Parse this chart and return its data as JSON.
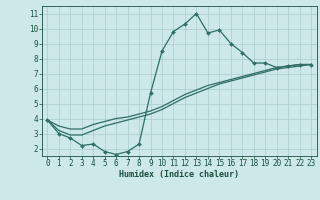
{
  "xlabel": "Humidex (Indice chaleur)",
  "bg_color": "#cce8e8",
  "grid_color": "#b0d0d0",
  "line_color": "#2e6e64",
  "x_values": [
    0,
    1,
    2,
    3,
    4,
    5,
    6,
    7,
    8,
    9,
    10,
    11,
    12,
    13,
    14,
    15,
    16,
    17,
    18,
    19,
    20,
    21,
    22,
    23
  ],
  "series1": [
    3.9,
    3.0,
    2.7,
    2.2,
    2.3,
    1.8,
    1.6,
    1.8,
    2.3,
    5.7,
    8.5,
    9.8,
    10.3,
    11.0,
    9.7,
    9.9,
    9.0,
    8.4,
    7.7,
    7.7,
    7.4,
    7.5,
    7.6,
    7.6
  ],
  "series2": [
    3.9,
    3.5,
    3.3,
    3.3,
    3.6,
    3.8,
    4.0,
    4.1,
    4.3,
    4.5,
    4.8,
    5.2,
    5.6,
    5.9,
    6.2,
    6.4,
    6.6,
    6.8,
    7.0,
    7.2,
    7.4,
    7.5,
    7.6,
    7.6
  ],
  "series3": [
    3.9,
    3.2,
    2.9,
    2.9,
    3.2,
    3.5,
    3.7,
    3.9,
    4.1,
    4.3,
    4.6,
    5.0,
    5.4,
    5.7,
    6.0,
    6.3,
    6.5,
    6.7,
    6.9,
    7.1,
    7.3,
    7.4,
    7.5,
    7.6
  ],
  "ylim": [
    1.5,
    11.5
  ],
  "xlim": [
    -0.5,
    23.5
  ],
  "yticks": [
    2,
    3,
    4,
    5,
    6,
    7,
    8,
    9,
    10,
    11
  ],
  "xticks": [
    0,
    1,
    2,
    3,
    4,
    5,
    6,
    7,
    8,
    9,
    10,
    11,
    12,
    13,
    14,
    15,
    16,
    17,
    18,
    19,
    20,
    21,
    22,
    23
  ],
  "tick_color": "#1a5040",
  "label_fontsize": 5.5,
  "xlabel_fontsize": 6.0
}
